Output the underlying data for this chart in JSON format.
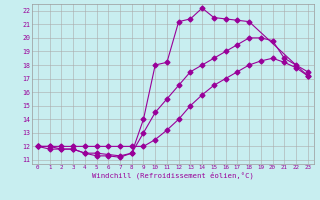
{
  "xlabel": "Windchill (Refroidissement éolien,°C)",
  "bg_color": "#c8eef0",
  "grid_color": "#aaaaaa",
  "line_color": "#990099",
  "xlim_min": -0.5,
  "xlim_max": 23.5,
  "ylim_min": 10.7,
  "ylim_max": 22.5,
  "xticks": [
    0,
    1,
    2,
    3,
    4,
    5,
    6,
    7,
    8,
    9,
    10,
    11,
    12,
    13,
    14,
    15,
    16,
    17,
    18,
    19,
    20,
    21,
    22,
    23
  ],
  "yticks": [
    11,
    12,
    13,
    14,
    15,
    16,
    17,
    18,
    19,
    20,
    21,
    22
  ],
  "line1_x": [
    0,
    1,
    2,
    3,
    4,
    5,
    6,
    7,
    8,
    9,
    10,
    11,
    12,
    13,
    14,
    15,
    16,
    17,
    18,
    23
  ],
  "line1_y": [
    12.0,
    12.0,
    11.8,
    11.8,
    11.5,
    11.3,
    11.3,
    11.2,
    11.5,
    14.0,
    18.0,
    18.2,
    21.2,
    21.4,
    22.2,
    21.5,
    21.4,
    21.3,
    21.2,
    17.2
  ],
  "line2_x": [
    0,
    1,
    2,
    3,
    4,
    5,
    6,
    7,
    8,
    9,
    10,
    11,
    12,
    13,
    14,
    15,
    16,
    17,
    18,
    19,
    20,
    21,
    22,
    23
  ],
  "line2_y": [
    12.0,
    11.8,
    11.8,
    11.8,
    11.5,
    11.5,
    11.4,
    11.3,
    11.5,
    13.0,
    14.5,
    15.5,
    16.5,
    17.5,
    18.0,
    18.5,
    19.0,
    19.5,
    20.0,
    20.0,
    19.8,
    18.5,
    18.0,
    17.5
  ],
  "line3_x": [
    0,
    1,
    2,
    3,
    4,
    5,
    6,
    7,
    8,
    9,
    10,
    11,
    12,
    13,
    14,
    15,
    16,
    17,
    18,
    19,
    20,
    21,
    22,
    23
  ],
  "line3_y": [
    12.0,
    12.0,
    12.0,
    12.0,
    12.0,
    12.0,
    12.0,
    12.0,
    12.0,
    12.0,
    12.5,
    13.2,
    14.0,
    15.0,
    15.8,
    16.5,
    17.0,
    17.5,
    18.0,
    18.3,
    18.5,
    18.2,
    17.8,
    17.2
  ]
}
